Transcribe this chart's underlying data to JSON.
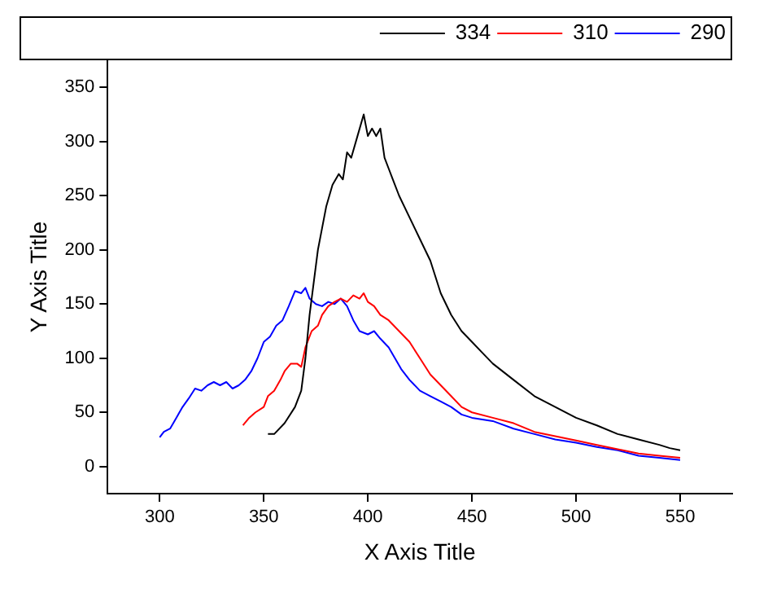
{
  "chart_data": {
    "type": "line",
    "xlabel": "X Axis Title",
    "ylabel": "Y Axis Title",
    "xlim": [
      275,
      575
    ],
    "xticks": [
      300,
      350,
      400,
      450,
      500,
      550
    ],
    "ylim": [
      -25,
      375
    ],
    "yticks": [
      0,
      50,
      100,
      150,
      200,
      250,
      300,
      350
    ],
    "grid": false,
    "legend": "top right",
    "marker": "none",
    "line_style": "solid",
    "series": [
      {
        "name": "334",
        "color": "#000000",
        "x": [
          352,
          355,
          360,
          365,
          368,
          370,
          372,
          374,
          376,
          378,
          380,
          383,
          386,
          388,
          390,
          392,
          395,
          398,
          400,
          402,
          404,
          406,
          408,
          410,
          412,
          415,
          420,
          425,
          430,
          435,
          440,
          445,
          450,
          455,
          460,
          470,
          480,
          490,
          500,
          510,
          520,
          530,
          540,
          545,
          550
        ],
        "values": [
          30,
          30,
          40,
          55,
          70,
          100,
          140,
          170,
          200,
          220,
          240,
          260,
          270,
          265,
          290,
          285,
          305,
          325,
          305,
          312,
          305,
          312,
          285,
          275,
          265,
          250,
          230,
          210,
          190,
          160,
          140,
          125,
          115,
          105,
          95,
          80,
          65,
          55,
          45,
          38,
          30,
          25,
          20,
          17,
          15
        ]
      },
      {
        "name": "310",
        "color": "#ff0000",
        "x": [
          340,
          343,
          346,
          350,
          352,
          355,
          358,
          360,
          363,
          366,
          368,
          370,
          373,
          376,
          378,
          381,
          384,
          387,
          390,
          393,
          396,
          398,
          400,
          403,
          406,
          410,
          415,
          420,
          425,
          430,
          435,
          440,
          445,
          450,
          460,
          470,
          480,
          490,
          500,
          510,
          520,
          530,
          540,
          550
        ],
        "values": [
          38,
          45,
          50,
          55,
          65,
          70,
          80,
          88,
          95,
          95,
          92,
          110,
          125,
          130,
          140,
          148,
          152,
          155,
          152,
          158,
          155,
          160,
          152,
          148,
          140,
          135,
          125,
          115,
          100,
          85,
          75,
          65,
          55,
          50,
          45,
          40,
          32,
          28,
          24,
          20,
          16,
          12,
          10,
          8
        ]
      },
      {
        "name": "290",
        "color": "#0000ff",
        "x": [
          300,
          302,
          305,
          308,
          311,
          314,
          317,
          320,
          323,
          326,
          329,
          332,
          335,
          338,
          341,
          344,
          347,
          350,
          353,
          356,
          359,
          362,
          365,
          368,
          370,
          372,
          375,
          378,
          381,
          384,
          387,
          390,
          393,
          396,
          400,
          403,
          406,
          410,
          413,
          416,
          420,
          425,
          430,
          435,
          440,
          445,
          450,
          460,
          470,
          480,
          490,
          500,
          510,
          520,
          530,
          540,
          550
        ],
        "values": [
          27,
          32,
          35,
          45,
          55,
          63,
          72,
          70,
          75,
          78,
          75,
          78,
          72,
          75,
          80,
          88,
          100,
          115,
          120,
          130,
          135,
          148,
          162,
          160,
          165,
          155,
          150,
          148,
          152,
          150,
          155,
          148,
          135,
          125,
          122,
          125,
          118,
          110,
          100,
          90,
          80,
          70,
          65,
          60,
          55,
          48,
          45,
          42,
          35,
          30,
          25,
          22,
          18,
          15,
          10,
          8,
          6
        ]
      }
    ]
  }
}
